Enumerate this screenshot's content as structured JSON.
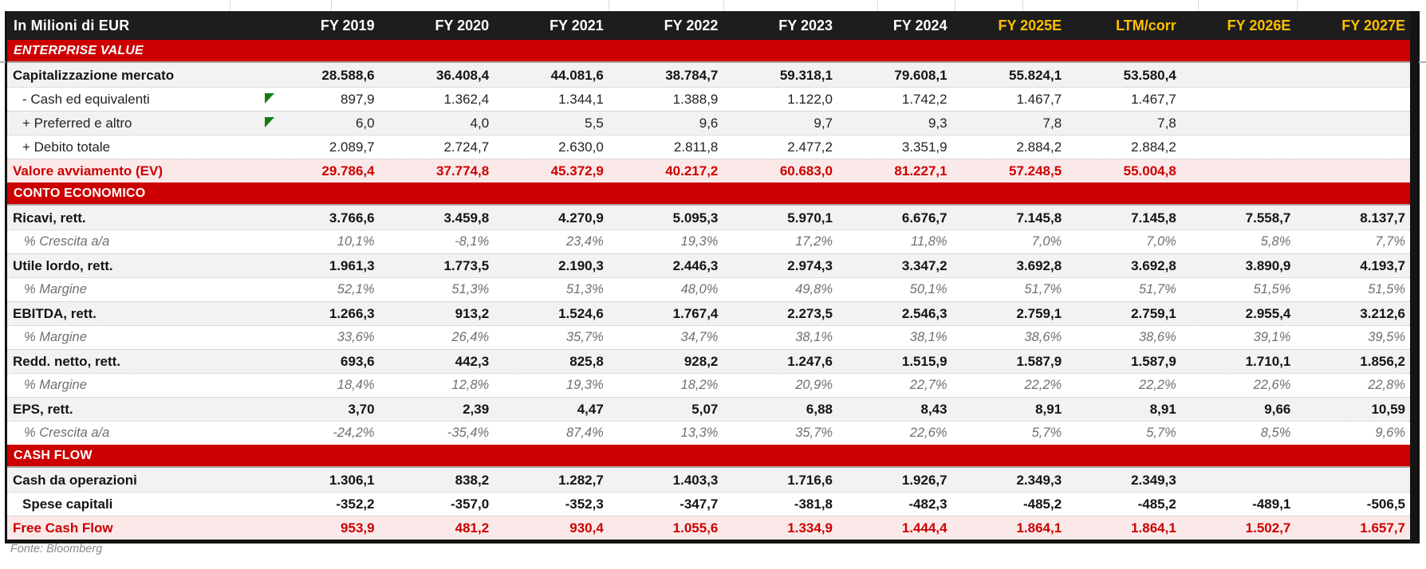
{
  "chart_data": {
    "type": "table",
    "title": "In Milioni di EUR",
    "source": "Fonte: Bloomberg",
    "columns": [
      {
        "label": "FY 2019",
        "estimate": false
      },
      {
        "label": "FY 2020",
        "estimate": false
      },
      {
        "label": "FY 2021",
        "estimate": false
      },
      {
        "label": "FY 2022",
        "estimate": false
      },
      {
        "label": "FY 2023",
        "estimate": false
      },
      {
        "label": "FY 2024",
        "estimate": false
      },
      {
        "label": "FY 2025E",
        "estimate": true
      },
      {
        "label": "LTM/corr",
        "estimate": true
      },
      {
        "label": "FY 2026E",
        "estimate": true
      },
      {
        "label": "FY 2027E",
        "estimate": true
      }
    ],
    "sections": [
      {
        "label": "ENTERPRISE VALUE",
        "italic": true,
        "rows": [
          {
            "label": "Capitalizzazione mercato",
            "style": "main",
            "values": [
              "28.588,6",
              "36.408,4",
              "44.081,6",
              "38.784,7",
              "59.318,1",
              "79.608,1",
              "55.824,1",
              "53.580,4",
              "",
              ""
            ]
          },
          {
            "label": "- Cash ed equivalenti",
            "style": "sub",
            "flag": true,
            "values": [
              "897,9",
              "1.362,4",
              "1.344,1",
              "1.388,9",
              "1.122,0",
              "1.742,2",
              "1.467,7",
              "1.467,7",
              "",
              ""
            ]
          },
          {
            "label": "+ Preferred e altro",
            "style": "sub",
            "flag": true,
            "values": [
              "6,0",
              "4,0",
              "5,5",
              "9,6",
              "9,7",
              "9,3",
              "7,8",
              "7,8",
              "",
              ""
            ]
          },
          {
            "label": "+ Debito totale",
            "style": "sub",
            "values": [
              "2.089,7",
              "2.724,7",
              "2.630,0",
              "2.811,8",
              "2.477,2",
              "3.351,9",
              "2.884,2",
              "2.884,2",
              "",
              ""
            ]
          },
          {
            "label": "Valore avviamento (EV)",
            "style": "total",
            "values": [
              "29.786,4",
              "37.774,8",
              "45.372,9",
              "40.217,2",
              "60.683,0",
              "81.227,1",
              "57.248,5",
              "55.004,8",
              "",
              ""
            ]
          }
        ]
      },
      {
        "label": "CONTO ECONOMICO",
        "italic": false,
        "rows": [
          {
            "label": "Ricavi, rett.",
            "style": "main",
            "values": [
              "3.766,6",
              "3.459,8",
              "4.270,9",
              "5.095,3",
              "5.970,1",
              "6.676,7",
              "7.145,8",
              "7.145,8",
              "7.558,7",
              "8.137,7"
            ]
          },
          {
            "label": "% Crescita a/a",
            "style": "pct",
            "values": [
              "10,1%",
              "-8,1%",
              "23,4%",
              "19,3%",
              "17,2%",
              "11,8%",
              "7,0%",
              "7,0%",
              "5,8%",
              "7,7%"
            ]
          },
          {
            "label": "Utile lordo, rett.",
            "style": "main",
            "values": [
              "1.961,3",
              "1.773,5",
              "2.190,3",
              "2.446,3",
              "2.974,3",
              "3.347,2",
              "3.692,8",
              "3.692,8",
              "3.890,9",
              "4.193,7"
            ]
          },
          {
            "label": "% Margine",
            "style": "pct",
            "values": [
              "52,1%",
              "51,3%",
              "51,3%",
              "48,0%",
              "49,8%",
              "50,1%",
              "51,7%",
              "51,7%",
              "51,5%",
              "51,5%"
            ]
          },
          {
            "label": "EBITDA, rett.",
            "style": "main",
            "values": [
              "1.266,3",
              "913,2",
              "1.524,6",
              "1.767,4",
              "2.273,5",
              "2.546,3",
              "2.759,1",
              "2.759,1",
              "2.955,4",
              "3.212,6"
            ]
          },
          {
            "label": "% Margine",
            "style": "pct",
            "values": [
              "33,6%",
              "26,4%",
              "35,7%",
              "34,7%",
              "38,1%",
              "38,1%",
              "38,6%",
              "38,6%",
              "39,1%",
              "39,5%"
            ]
          },
          {
            "label": "Redd. netto, rett.",
            "style": "main",
            "values": [
              "693,6",
              "442,3",
              "825,8",
              "928,2",
              "1.247,6",
              "1.515,9",
              "1.587,9",
              "1.587,9",
              "1.710,1",
              "1.856,2"
            ]
          },
          {
            "label": "% Margine",
            "style": "pct",
            "values": [
              "18,4%",
              "12,8%",
              "19,3%",
              "18,2%",
              "20,9%",
              "22,7%",
              "22,2%",
              "22,2%",
              "22,6%",
              "22,8%"
            ]
          },
          {
            "label": "EPS, rett.",
            "style": "main",
            "values": [
              "3,70",
              "2,39",
              "4,47",
              "5,07",
              "6,88",
              "8,43",
              "8,91",
              "8,91",
              "9,66",
              "10,59"
            ]
          },
          {
            "label": "% Crescita a/a",
            "style": "pct",
            "values": [
              "-24,2%",
              "-35,4%",
              "87,4%",
              "13,3%",
              "35,7%",
              "22,6%",
              "5,7%",
              "5,7%",
              "8,5%",
              "9,6%"
            ]
          }
        ]
      },
      {
        "label": "CASH FLOW",
        "italic": false,
        "rows": [
          {
            "label": "Cash da operazioni",
            "style": "main",
            "values": [
              "1.306,1",
              "838,2",
              "1.282,7",
              "1.403,3",
              "1.716,6",
              "1.926,7",
              "2.349,3",
              "2.349,3",
              "",
              ""
            ]
          },
          {
            "label": "Spese capitali",
            "style": "mainind",
            "values": [
              "-352,2",
              "-357,0",
              "-352,3",
              "-347,7",
              "-381,8",
              "-482,3",
              "-485,2",
              "-485,2",
              "-489,1",
              "-506,5"
            ]
          },
          {
            "label": "Free Cash Flow",
            "style": "total",
            "values": [
              "953,9",
              "481,2",
              "930,4",
              "1.055,6",
              "1.334,9",
              "1.444,4",
              "1.864,1",
              "1.864,1",
              "1.502,7",
              "1.657,7"
            ]
          }
        ]
      }
    ],
    "colors": {
      "section_red": "#CC0000",
      "estimate_gold": "#FFC000",
      "header_black": "#1D1D1D",
      "total_row_pink": "#FBE9E9",
      "stripe_gray": "#F2F2F2",
      "flag_green": "#157A15"
    }
  }
}
